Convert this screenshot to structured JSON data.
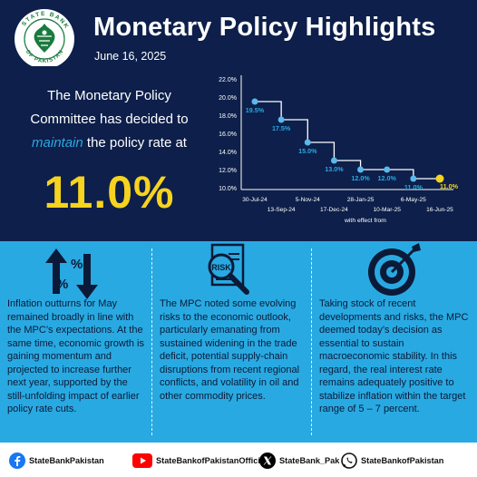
{
  "header": {
    "title": "Monetary Policy Highlights",
    "date": "June 16, 2025",
    "logo_text": "STATE BANK OF PAKISTAN"
  },
  "decision": {
    "line1": "The Monetary Policy",
    "line2": "Committee has decided to",
    "highlight": "maintain",
    "line3_rest": "the policy rate at",
    "rate": "11.0%"
  },
  "chart_data": {
    "type": "line",
    "step": true,
    "x": [
      "30-Jul-24",
      "13-Sep-24",
      "5-Nov-24",
      "17-Dec-24",
      "28-Jan-25",
      "10-Mar-25",
      "6-May-25",
      "16-Jun-25"
    ],
    "values": [
      19.5,
      17.5,
      15.0,
      13.0,
      12.0,
      12.0,
      11.0,
      11.0
    ],
    "data_labels": [
      "19.5%",
      "17.5%",
      "15.0%",
      "13.0%",
      "12.0%",
      "12.0%",
      "11.0%",
      "11.0%"
    ],
    "y_ticks": [
      "10.0%",
      "12.0%",
      "14.0%",
      "16.0%",
      "18.0%",
      "20.0%",
      "22.0%"
    ],
    "ylim": [
      10,
      22
    ],
    "xlabel": "with effect from",
    "grid": false,
    "colors": {
      "line": "#ffffff",
      "marker": "#5ab8ea",
      "highlight": "#f5d31f",
      "labels": "#29a9e1"
    }
  },
  "columns": [
    {
      "icon": "inflation-arrows-icon",
      "text": "Inflation outturns for May remained broadly in line with the MPC’s expectations. At the same time, economic growth is gaining momentum and projected to increase further next year, supported by the still-unfolding impact of earlier policy rate cuts."
    },
    {
      "icon": "risk-magnifier-icon",
      "icon_label": "RISK",
      "text": "The MPC noted some evolving risks to the economic outlook, particularly emanating from sustained widening in the trade deficit, potential supply-chain disruptions from recent regional conflicts, and volatility in oil and other commodity prices."
    },
    {
      "icon": "target-icon",
      "text": "Taking stock of recent developments and risks, the MPC deemed today’s decision as essential to sustain macroeconomic stability. In this regard, the real interest rate remains adequately positive to stabilize inflation within the target range of 5 – 7 percent."
    }
  ],
  "footer": {
    "facebook": "StateBankPakistan",
    "youtube": "StateBankofPakistanOfficial",
    "x": "StateBank_Pak",
    "whatsapp": "StateBankofPakistan"
  },
  "colors": {
    "navy": "#0d1f4a",
    "sky": "#29a9e1",
    "yellow": "#f5d31f"
  }
}
